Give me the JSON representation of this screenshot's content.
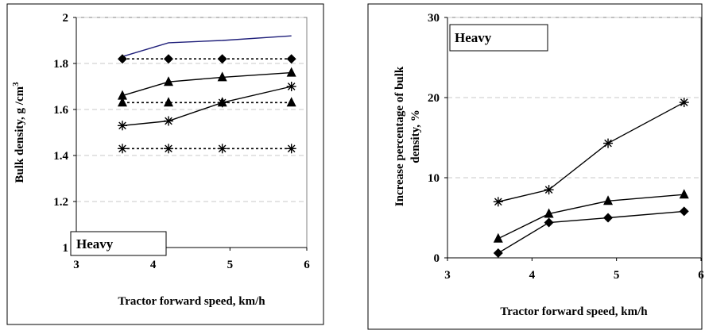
{
  "chart_data": [
    {
      "type": "line",
      "legend_label": "Heavy",
      "legend_placement": "bottom-left",
      "xlabel": "Tractor forward speed, km/h",
      "ylabel_parts": [
        "Bulk density, g  /cm",
        "3"
      ],
      "xlim": [
        3,
        6
      ],
      "ylim": [
        1,
        2
      ],
      "x_ticks": [
        "3",
        "4",
        "5",
        "6"
      ],
      "y_ticks": [
        "1",
        "1.2",
        "1.4",
        "1.6",
        "1.8",
        "2"
      ],
      "grid": "horizontal-dashed",
      "series": [
        {
          "x": [
            3.6,
            4.2,
            4.9,
            5.8
          ],
          "values": [
            1.83,
            1.89,
            1.9,
            1.92
          ],
          "marker": "none",
          "line": "solid",
          "color": "#1f1f7a"
        },
        {
          "x": [
            3.6,
            4.2,
            4.9,
            5.8
          ],
          "values": [
            1.82,
            1.82,
            1.82,
            1.82
          ],
          "marker": "diamond",
          "line": "dotted",
          "color": "#000000"
        },
        {
          "x": [
            3.6,
            4.2,
            4.9,
            5.8
          ],
          "values": [
            1.66,
            1.72,
            1.74,
            1.76
          ],
          "marker": "triangle",
          "line": "solid",
          "color": "#000000"
        },
        {
          "x": [
            3.6,
            4.2,
            4.9,
            5.8
          ],
          "values": [
            1.63,
            1.63,
            1.63,
            1.63
          ],
          "marker": "triangle",
          "line": "dotted",
          "color": "#000000"
        },
        {
          "x": [
            3.6,
            4.2,
            4.9,
            5.8
          ],
          "values": [
            1.53,
            1.55,
            1.63,
            1.7
          ],
          "marker": "star",
          "line": "solid",
          "color": "#000000"
        },
        {
          "x": [
            3.6,
            4.2,
            4.9,
            5.8
          ],
          "values": [
            1.43,
            1.43,
            1.43,
            1.43
          ],
          "marker": "star",
          "line": "dotted",
          "color": "#000000"
        }
      ]
    },
    {
      "type": "line",
      "legend_label": "Heavy",
      "legend_placement": "top-left",
      "xlabel": "Tractor forward speed, km/h",
      "ylabel_lines": [
        "Increase percentage of bulk",
        "density, %"
      ],
      "xlim": [
        3,
        6
      ],
      "ylim": [
        0,
        30
      ],
      "x_ticks": [
        "3",
        "4",
        "5",
        "6"
      ],
      "y_ticks": [
        "0",
        "10",
        "20",
        "30"
      ],
      "grid": "horizontal-dashed",
      "series": [
        {
          "x": [
            3.6,
            4.2,
            4.9,
            5.8
          ],
          "values": [
            7.0,
            8.5,
            14.3,
            19.4
          ],
          "marker": "star",
          "line": "solid",
          "color": "#000000"
        },
        {
          "x": [
            3.6,
            4.2,
            4.9,
            5.8
          ],
          "values": [
            2.4,
            5.5,
            7.1,
            7.9
          ],
          "marker": "triangle",
          "line": "solid",
          "color": "#000000"
        },
        {
          "x": [
            3.6,
            4.2,
            4.9,
            5.8
          ],
          "values": [
            0.6,
            4.4,
            5.0,
            5.8
          ],
          "marker": "diamond",
          "line": "solid",
          "color": "#000000"
        }
      ]
    }
  ]
}
